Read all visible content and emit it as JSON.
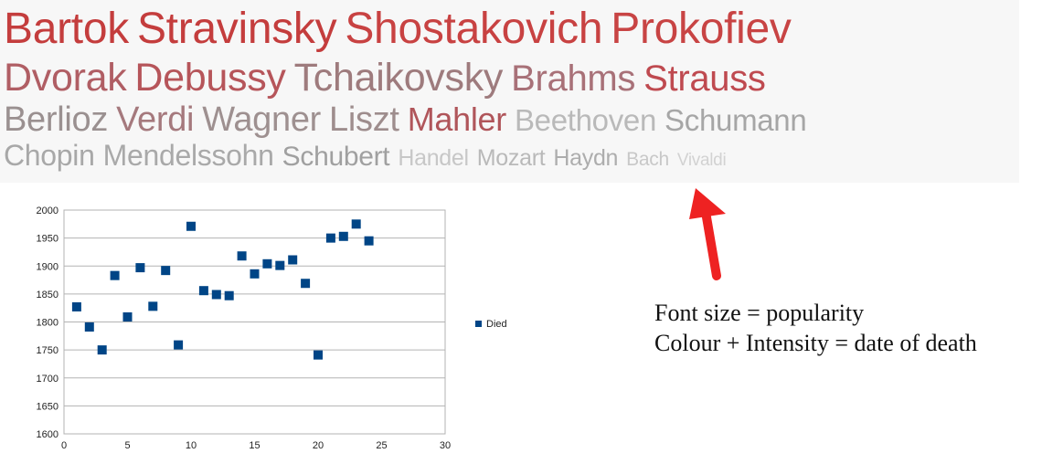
{
  "word_cloud": {
    "lines": [
      [
        {
          "text": "Bartok",
          "color": "#c43d3d",
          "size": 48
        },
        {
          "text": "Stravinsky",
          "color": "#c43d3d",
          "size": 48
        },
        {
          "text": "Shostakovich",
          "color": "#c84242",
          "size": 48
        },
        {
          "text": "Prokofiev",
          "color": "#c84444",
          "size": 48
        }
      ],
      [
        {
          "text": "Dvorak",
          "color": "#b05e64",
          "size": 43
        },
        {
          "text": "Debussy",
          "color": "#b6555a",
          "size": 43
        },
        {
          "text": "Tchaikovsky",
          "color": "#9e7b7d",
          "size": 43
        },
        {
          "text": "Brahms",
          "color": "#a87178",
          "size": 40
        },
        {
          "text": "Strauss",
          "color": "#bf4a50",
          "size": 40
        }
      ],
      [
        {
          "text": "Berlioz",
          "color": "#9a9090",
          "size": 38
        },
        {
          "text": "Verdi",
          "color": "#a5797d",
          "size": 38
        },
        {
          "text": "Wagner",
          "color": "#9e9090",
          "size": 38
        },
        {
          "text": "Liszt",
          "color": "#9e8d8d",
          "size": 38
        },
        {
          "text": "Mahler",
          "color": "#b0555a",
          "size": 36
        },
        {
          "text": "Beethoven",
          "color": "#b9b9b9",
          "size": 33
        },
        {
          "text": "Schumann",
          "color": "#a6a6a6",
          "size": 33
        }
      ],
      [
        {
          "text": "Chopin",
          "color": "#a8a8a8",
          "size": 32
        },
        {
          "text": "Mendelssohn",
          "color": "#a9a9a9",
          "size": 32
        },
        {
          "text": "Schubert",
          "color": "#a0a0a0",
          "size": 30
        },
        {
          "text": "Handel",
          "color": "#c7c7c7",
          "size": 25
        },
        {
          "text": "Mozart",
          "color": "#b9b9b9",
          "size": 25
        },
        {
          "text": "Haydn",
          "color": "#adadad",
          "size": 25
        },
        {
          "text": "Bach",
          "color": "#c8c8c8",
          "size": 21
        },
        {
          "text": "Vivaldi",
          "color": "#d2d2d2",
          "size": 19
        }
      ]
    ]
  },
  "chart_data": {
    "type": "scatter",
    "series": [
      {
        "name": "Died",
        "color": "#004586",
        "points": [
          [
            1,
            1827
          ],
          [
            2,
            1791
          ],
          [
            3,
            1750
          ],
          [
            4,
            1883
          ],
          [
            5,
            1809
          ],
          [
            6,
            1897
          ],
          [
            7,
            1828
          ],
          [
            8,
            1892
          ],
          [
            9,
            1759
          ],
          [
            10,
            1971
          ],
          [
            11,
            1856
          ],
          [
            12,
            1849
          ],
          [
            13,
            1847
          ],
          [
            14,
            1918
          ],
          [
            15,
            1886
          ],
          [
            16,
            1904
          ],
          [
            17,
            1901
          ],
          [
            18,
            1911
          ],
          [
            19,
            1869
          ],
          [
            20,
            1741
          ],
          [
            21,
            1950
          ],
          [
            22,
            1953
          ],
          [
            23,
            1975
          ],
          [
            24,
            1945
          ]
        ]
      }
    ],
    "xlim": [
      0,
      30
    ],
    "ylim": [
      1600,
      2000
    ],
    "xticks": [
      0,
      5,
      10,
      15,
      20,
      25,
      30
    ],
    "yticks": [
      1600,
      1650,
      1700,
      1750,
      1800,
      1850,
      1900,
      1950,
      2000
    ],
    "grid": "horizontal",
    "legend": "right"
  },
  "annotation": {
    "arrow_color": "#ee2222",
    "line1": "Font size = popularity",
    "line2": "Colour + Intensity = date of death"
  }
}
